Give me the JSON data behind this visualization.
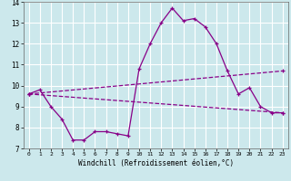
{
  "xlabel": "Windchill (Refroidissement éolien,°C)",
  "xlim_min": -0.5,
  "xlim_max": 23.5,
  "ylim_min": 7,
  "ylim_max": 14,
  "yticks": [
    7,
    8,
    9,
    10,
    11,
    12,
    13,
    14
  ],
  "xticks": [
    0,
    1,
    2,
    3,
    4,
    5,
    6,
    7,
    8,
    9,
    10,
    11,
    12,
    13,
    14,
    15,
    16,
    17,
    18,
    19,
    20,
    21,
    22,
    23
  ],
  "bg_color": "#cce8ec",
  "line_color": "#880088",
  "grid_color": "#ffffff",
  "line1_x": [
    0,
    1,
    2,
    3,
    4,
    5,
    6,
    7,
    8,
    9,
    10,
    11,
    12,
    13,
    14,
    15,
    16,
    17,
    18,
    19,
    20,
    21,
    22,
    23
  ],
  "line1_y": [
    9.6,
    9.8,
    9.0,
    8.4,
    7.4,
    7.4,
    7.8,
    7.8,
    7.7,
    7.6,
    10.8,
    12.0,
    13.0,
    13.7,
    13.1,
    13.2,
    12.8,
    12.0,
    10.7,
    9.6,
    9.9,
    9.0,
    8.7,
    8.7
  ],
  "line2_x": [
    0,
    23
  ],
  "line2_y": [
    9.6,
    10.7
  ],
  "line3_x": [
    0,
    23
  ],
  "line3_y": [
    9.6,
    8.7
  ]
}
